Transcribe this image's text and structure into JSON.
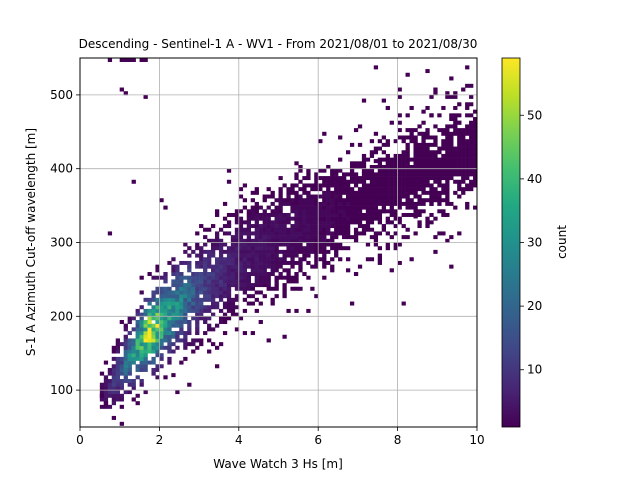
{
  "chart_data": {
    "type": "heatmap",
    "title": "Descending - Sentinel-1 A - WV1 - From 2021/08/01 to 2021/08/30",
    "xlabel": "Wave Watch 3 Hs [m]",
    "ylabel": "S-1 A Azimuth Cut-off wavelength [m]",
    "xlim": [
      0,
      10
    ],
    "ylim": [
      50,
      550
    ],
    "xticks": [
      0,
      2,
      4,
      6,
      8,
      10
    ],
    "yticks": [
      100,
      200,
      300,
      400,
      500
    ],
    "grid": true,
    "colorbar": {
      "label": "count",
      "colormap": "viridis",
      "range": [
        1,
        59
      ],
      "ticks": [
        10,
        20,
        30,
        40,
        50
      ]
    },
    "bin_size": {
      "x": 0.1,
      "y": 5
    },
    "density_ridge": [
      {
        "x": 0.6,
        "y": 95,
        "spread": 18,
        "peak": 3
      },
      {
        "x": 1.0,
        "y": 125,
        "spread": 22,
        "peak": 14
      },
      {
        "x": 1.4,
        "y": 155,
        "spread": 26,
        "peak": 32
      },
      {
        "x": 1.8,
        "y": 180,
        "spread": 28,
        "peak": 55
      },
      {
        "x": 2.2,
        "y": 200,
        "spread": 30,
        "peak": 34
      },
      {
        "x": 2.6,
        "y": 220,
        "spread": 32,
        "peak": 24
      },
      {
        "x": 3.0,
        "y": 235,
        "spread": 34,
        "peak": 14
      },
      {
        "x": 3.5,
        "y": 255,
        "spread": 36,
        "peak": 8
      },
      {
        "x": 4.0,
        "y": 275,
        "spread": 38,
        "peak": 5
      },
      {
        "x": 5.0,
        "y": 305,
        "spread": 40,
        "peak": 3
      },
      {
        "x": 6.0,
        "y": 330,
        "spread": 42,
        "peak": 2
      },
      {
        "x": 7.0,
        "y": 355,
        "spread": 44,
        "peak": 1
      },
      {
        "x": 8.0,
        "y": 380,
        "spread": 45,
        "peak": 1
      },
      {
        "x": 9.0,
        "y": 405,
        "spread": 45,
        "peak": 1
      },
      {
        "x": 10.0,
        "y": 430,
        "spread": 45,
        "peak": 1
      }
    ],
    "outlier_points": [
      [
        1.0,
        545
      ],
      [
        1.1,
        545
      ],
      [
        1.2,
        545
      ],
      [
        1.3,
        545
      ],
      [
        1.5,
        545
      ],
      [
        1.6,
        545
      ],
      [
        0.7,
        545
      ],
      [
        1.0,
        505
      ],
      [
        1.1,
        500
      ],
      [
        1.6,
        495
      ],
      [
        1.3,
        380
      ],
      [
        2.0,
        355
      ],
      [
        0.7,
        310
      ],
      [
        2.1,
        345
      ],
      [
        9.5,
        485
      ],
      [
        9.5,
        460
      ],
      [
        9.5,
        445
      ],
      [
        8.8,
        470
      ],
      [
        9.9,
        390
      ],
      [
        8.0,
        460
      ],
      [
        8.3,
        440
      ],
      [
        8.7,
        440
      ],
      [
        8.9,
        410
      ],
      [
        9.2,
        395
      ],
      [
        8.6,
        380
      ],
      [
        8.5,
        370
      ],
      [
        9.0,
        380
      ],
      [
        8.0,
        395
      ],
      [
        7.3,
        420
      ],
      [
        7.4,
        408
      ],
      [
        6.5,
        440
      ],
      [
        0.8,
        60
      ],
      [
        1.0,
        52
      ],
      [
        0.6,
        80
      ],
      [
        0.5,
        90
      ],
      [
        2.4,
        95
      ],
      [
        2.7,
        105
      ],
      [
        2.3,
        118
      ],
      [
        7.9,
        290
      ],
      [
        7.2,
        275
      ],
      [
        6.7,
        275
      ],
      [
        8.2,
        315
      ],
      [
        8.4,
        333
      ],
      [
        9.1,
        335
      ],
      [
        9.2,
        300
      ],
      [
        8.8,
        350
      ],
      [
        7.6,
        340
      ]
    ]
  }
}
